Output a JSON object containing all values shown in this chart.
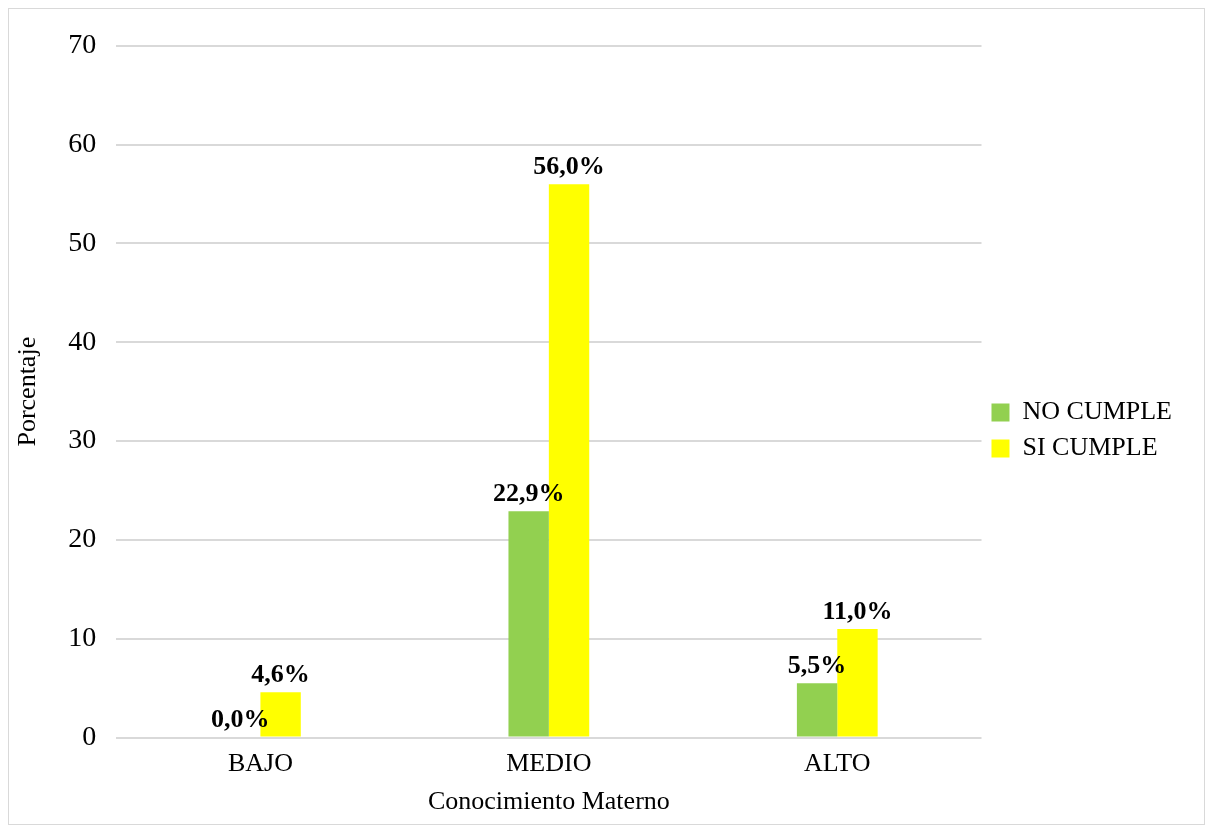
{
  "chart_data": {
    "type": "bar",
    "xlabel": "Conocimiento Materno",
    "ylabel": "Porcentaje",
    "categories": [
      "BAJO",
      "MEDIO",
      "ALTO"
    ],
    "series": [
      {
        "name": "NO CUMPLE",
        "color": "#92d050",
        "values": [
          0.0,
          22.9,
          5.5
        ],
        "value_labels": [
          "0,0%",
          "22,9%",
          "5,5%"
        ]
      },
      {
        "name": "SI CUMPLE",
        "color": "#ffff00",
        "values": [
          4.6,
          56.0,
          11.0
        ],
        "value_labels": [
          "4,6%",
          "56,0%",
          "11,0%"
        ]
      }
    ],
    "ylim": [
      0,
      70
    ],
    "yticks": [
      0,
      10,
      20,
      30,
      40,
      50,
      60,
      70
    ],
    "grid": "y",
    "legend": "right"
  }
}
